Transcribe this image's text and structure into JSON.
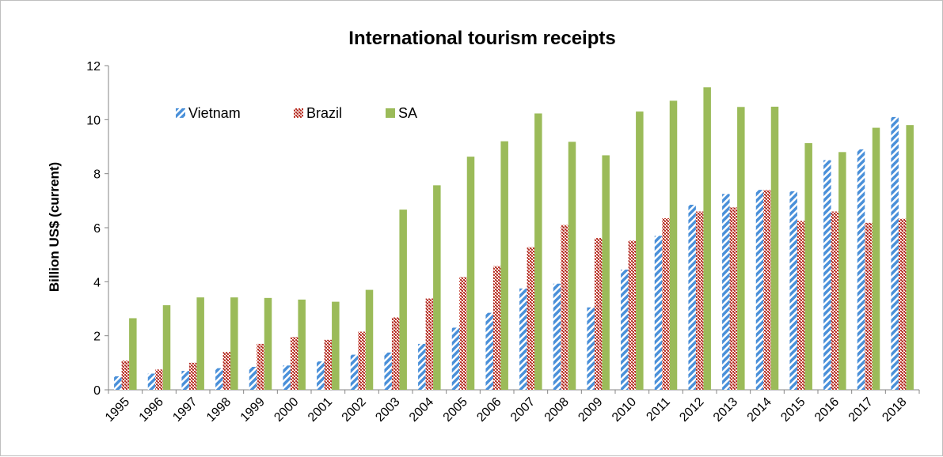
{
  "chart_data": {
    "type": "bar",
    "title": "International tourism receipts",
    "xlabel": "",
    "ylabel": "Billion US$ (current)",
    "ylim": [
      0,
      12
    ],
    "yticks": [
      0,
      2,
      4,
      6,
      8,
      10,
      12
    ],
    "grid": false,
    "legend_position": "top-left",
    "categories": [
      "1995",
      "1996",
      "1997",
      "1998",
      "1999",
      "2000",
      "2001",
      "2002",
      "2003",
      "2004",
      "2005",
      "2006",
      "2007",
      "2008",
      "2009",
      "2010",
      "2011",
      "2012",
      "2013",
      "2014",
      "2015",
      "2016",
      "2017",
      "2018"
    ],
    "series": [
      {
        "name": "Vietnam",
        "color": "#4a90d9",
        "pattern": "diagonal-stripes",
        "values": [
          0.5,
          0.6,
          0.7,
          0.8,
          0.85,
          0.9,
          1.05,
          1.3,
          1.38,
          1.7,
          2.3,
          2.85,
          3.75,
          3.93,
          3.05,
          4.45,
          5.7,
          6.85,
          7.25,
          7.4,
          7.35,
          8.5,
          8.9,
          10.1
        ]
      },
      {
        "name": "Brazil",
        "color": "#c0392b",
        "pattern": "checker",
        "values": [
          1.08,
          0.75,
          1.0,
          1.4,
          1.7,
          1.95,
          1.85,
          2.15,
          2.68,
          3.38,
          4.17,
          4.58,
          5.28,
          6.1,
          5.62,
          5.52,
          6.35,
          6.6,
          6.75,
          7.4,
          6.25,
          6.6,
          6.18,
          6.33
        ]
      },
      {
        "name": "SA",
        "color": "#9bbb59",
        "pattern": "solid",
        "values": [
          2.65,
          3.13,
          3.42,
          3.42,
          3.4,
          3.34,
          3.26,
          3.7,
          6.67,
          7.57,
          8.63,
          9.2,
          10.23,
          9.18,
          8.68,
          10.3,
          10.7,
          11.2,
          10.47,
          10.48,
          9.13,
          8.8,
          9.7,
          9.8
        ]
      }
    ]
  }
}
